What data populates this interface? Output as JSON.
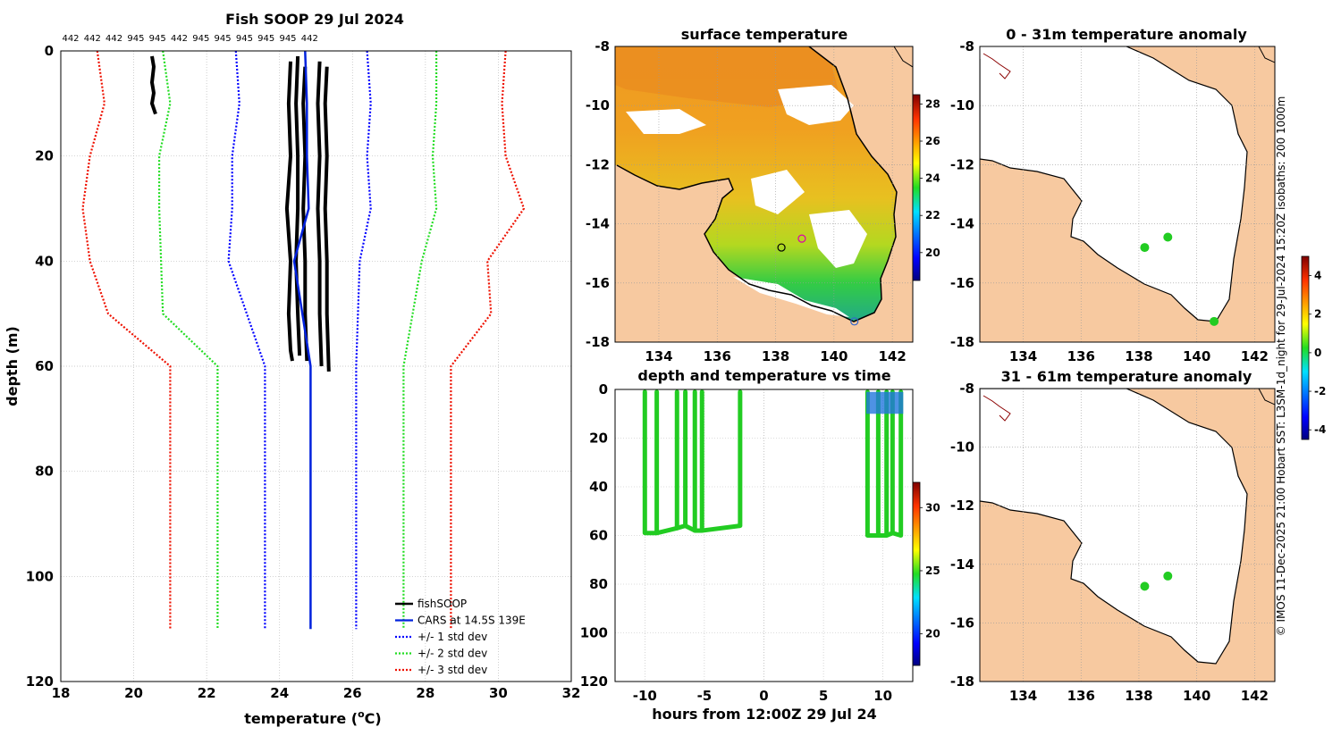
{
  "figure": {
    "copyright": "© IMOS 11-Dec-2025 21:00 Hobart SST: L3SM-1d_night for 29-Jul-2024 15:20Z isobaths: 200   1000m",
    "colors": {
      "land": "#f7c9a0",
      "fish": "#000000",
      "cars": "#0022dd",
      "std1": "#0000ff",
      "std2": "#22dd22",
      "std3": "#ee1100",
      "grid": "#bbbbbb"
    }
  },
  "chart_data": [
    {
      "id": "profile",
      "type": "line",
      "title": "Fish SOOP 29 Jul 2024",
      "top_labels": [
        "442",
        "442",
        "442",
        "945",
        "945",
        "442",
        "945",
        "945",
        "945",
        "945",
        "945",
        "442"
      ],
      "xlabel": "temperature (°C)",
      "xlabel_main": "temperature (",
      "xlabel_sup": "o",
      "xlabel_tail": "C)",
      "ylabel": "depth (m)",
      "xlim": [
        18,
        32
      ],
      "ylim": [
        120,
        0
      ],
      "xticks": [
        "18",
        "20",
        "22",
        "24",
        "26",
        "28",
        "30",
        "32"
      ],
      "yticks": [
        "0",
        "20",
        "40",
        "60",
        "80",
        "100",
        "120"
      ],
      "legend": [
        "fishSOOP",
        "CARS at 14.5S 139E",
        "+/- 1 std dev",
        "+/- 2 std dev",
        "+/- 3 std dev"
      ],
      "series": [
        {
          "name": "fishSOOP",
          "style": "fish",
          "segments": [
            {
              "x": [
                20.5,
                20.55,
                20.5,
                20.55,
                20.5,
                20.6
              ],
              "y": [
                1,
                3,
                6,
                8,
                10,
                12
              ]
            },
            {
              "x": [
                24.3,
                24.25,
                24.3,
                24.2,
                24.3,
                24.25,
                24.3,
                24.35
              ],
              "y": [
                2,
                10,
                20,
                30,
                40,
                50,
                57,
                59
              ]
            },
            {
              "x": [
                24.5,
                24.45,
                24.5,
                24.5,
                24.45,
                24.5,
                24.55
              ],
              "y": [
                1,
                10,
                20,
                30,
                40,
                50,
                58
              ]
            },
            {
              "x": [
                24.7,
                24.65,
                24.7,
                24.65,
                24.7,
                24.7,
                24.75
              ],
              "y": [
                3,
                10,
                20,
                30,
                40,
                50,
                59
              ]
            },
            {
              "x": [
                25.1,
                25.05,
                25.1,
                25.05,
                25.1,
                25.1,
                25.15
              ],
              "y": [
                2,
                10,
                20,
                30,
                40,
                50,
                60
              ]
            },
            {
              "x": [
                25.3,
                25.25,
                25.3,
                25.25,
                25.3,
                25.3,
                25.35
              ],
              "y": [
                3,
                10,
                20,
                30,
                40,
                50,
                61
              ]
            }
          ]
        },
        {
          "name": "CARS at 14.5S 139E",
          "style": "cars",
          "x": [
            24.7,
            24.75,
            24.75,
            24.8,
            24.4,
            24.85,
            24.85
          ],
          "y": [
            0,
            10,
            20,
            30,
            40,
            60,
            110
          ]
        },
        {
          "name": "+1 std dev",
          "style": "std1",
          "x": [
            26.4,
            26.5,
            26.4,
            26.5,
            26.2,
            26.1,
            26.1
          ],
          "y": [
            0,
            10,
            20,
            30,
            40,
            60,
            110
          ]
        },
        {
          "name": "-1 std dev",
          "style": "std1",
          "x": [
            22.8,
            22.9,
            22.7,
            22.7,
            22.6,
            23.6,
            23.6
          ],
          "y": [
            0,
            10,
            20,
            30,
            40,
            60,
            110
          ]
        },
        {
          "name": "+2 std dev",
          "style": "std2",
          "x": [
            28.3,
            28.3,
            28.2,
            28.3,
            27.9,
            27.4,
            27.4
          ],
          "y": [
            0,
            10,
            20,
            30,
            40,
            60,
            110
          ]
        },
        {
          "name": "-2 std dev",
          "style": "std2",
          "x": [
            20.8,
            21.0,
            20.7,
            20.7,
            20.8,
            22.3,
            22.3
          ],
          "y": [
            0,
            10,
            20,
            30,
            50,
            60,
            110
          ]
        },
        {
          "name": "+3 std dev",
          "style": "std3",
          "x": [
            30.2,
            30.1,
            30.2,
            30.7,
            29.7,
            29.8,
            28.7,
            28.7
          ],
          "y": [
            0,
            10,
            20,
            30,
            40,
            50,
            60,
            110
          ]
        },
        {
          "name": "-3 std dev",
          "style": "std3",
          "x": [
            19.0,
            19.2,
            18.8,
            18.6,
            18.8,
            19.3,
            21.0,
            21.0
          ],
          "y": [
            0,
            10,
            20,
            30,
            40,
            50,
            60,
            110
          ]
        }
      ]
    },
    {
      "id": "sst_map",
      "type": "heatmap",
      "title": "surface temperature",
      "xlim": [
        132.5,
        142.7
      ],
      "ylim": [
        -18,
        -8
      ],
      "xticks": [
        "134",
        "136",
        "138",
        "140",
        "142"
      ],
      "yticks": [
        "-8",
        "-10",
        "-12",
        "-14",
        "-16",
        "-18"
      ],
      "colorbar_ticks": [
        "28",
        "26",
        "24",
        "22",
        "20"
      ],
      "clim": [
        18.5,
        28.5
      ],
      "markers": [
        {
          "lon": 138.2,
          "lat": -14.8,
          "color": "#000000"
        },
        {
          "lon": 138.9,
          "lat": -14.5,
          "color": "#dd00aa"
        },
        {
          "lon": 140.7,
          "lat": -17.3,
          "color": "#3366cc"
        }
      ]
    },
    {
      "id": "depth_time",
      "type": "scatter",
      "title": "depth and temperature vs time",
      "xlabel": "hours from 12:00Z 29 Jul 24",
      "xlim": [
        -12.5,
        12.5
      ],
      "ylim": [
        120,
        0
      ],
      "xticks": [
        "-10",
        "-5",
        "0",
        "5",
        "10"
      ],
      "yticks": [
        "0",
        "20",
        "40",
        "60",
        "80",
        "100",
        "120"
      ],
      "colorbar_ticks": [
        "30",
        "25",
        "20"
      ],
      "clim": [
        17.5,
        32
      ],
      "casts": [
        {
          "x": -10.0,
          "bottom": 59,
          "temp": 25
        },
        {
          "x": -9.0,
          "bottom": 59,
          "temp": 25
        },
        {
          "x": -7.3,
          "bottom": 57,
          "temp": 25
        },
        {
          "x": -6.6,
          "bottom": 56,
          "temp": 25
        },
        {
          "x": -5.8,
          "bottom": 58,
          "temp": 25
        },
        {
          "x": -5.2,
          "bottom": 58,
          "temp": 25
        },
        {
          "x": -2.0,
          "bottom": 56,
          "temp": 25
        },
        {
          "x": 8.7,
          "bottom": 60,
          "temp": 25
        },
        {
          "x": 9.6,
          "bottom": 60,
          "temp": 25
        },
        {
          "x": 10.3,
          "bottom": 60,
          "temp": 25
        },
        {
          "x": 10.8,
          "bottom": 59,
          "temp": 25
        },
        {
          "x": 11.5,
          "bottom": 60,
          "temp": 25
        }
      ]
    },
    {
      "id": "anom_0_31",
      "type": "scatter",
      "title": "0 - 31m temperature anomaly",
      "xlim": [
        132.5,
        142.7
      ],
      "ylim": [
        -18,
        -8
      ],
      "xticks": [
        "134",
        "136",
        "138",
        "140",
        "142"
      ],
      "yticks": [
        "-8",
        "-10",
        "-12",
        "-14",
        "-16",
        "-18"
      ],
      "points": [
        {
          "lon": 138.2,
          "lat": -14.8,
          "anomaly": 0.5
        },
        {
          "lon": 139.0,
          "lat": -14.45,
          "anomaly": 0.5
        },
        {
          "lon": 140.6,
          "lat": -17.3,
          "anomaly": 0.5
        }
      ]
    },
    {
      "id": "anom_31_61",
      "type": "scatter",
      "title": "31 - 61m temperature anomaly",
      "xlim": [
        132.5,
        142.7
      ],
      "ylim": [
        -18,
        -8
      ],
      "xticks": [
        "134",
        "136",
        "138",
        "140",
        "142"
      ],
      "yticks": [
        "-8",
        "-10",
        "-12",
        "-14",
        "-16",
        "-18"
      ],
      "colorbar_ticks": [
        "4",
        "2",
        "0",
        "-2",
        "-4"
      ],
      "clim": [
        -4.5,
        5
      ],
      "points": [
        {
          "lon": 138.2,
          "lat": -14.75,
          "anomaly": 0.5
        },
        {
          "lon": 139.0,
          "lat": -14.4,
          "anomaly": 0.5
        }
      ]
    }
  ]
}
